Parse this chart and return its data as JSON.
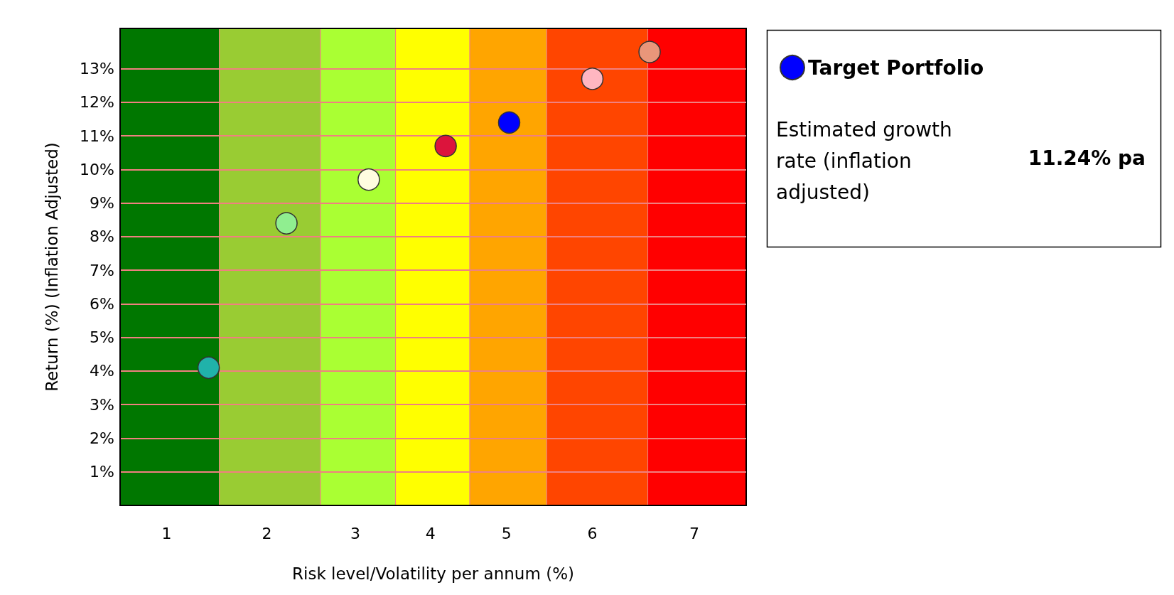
{
  "chart_data": {
    "type": "scatter",
    "xlabel": "Risk level/Volatility per annum (%)",
    "ylabel": "Return (%) (Inflation Adjusted)",
    "xlim": [
      0.5,
      7.5
    ],
    "xticks": [
      {
        "value": 1.02,
        "label": "1"
      },
      {
        "value": 2.14,
        "label": "2"
      },
      {
        "value": 3.13,
        "label": "3"
      },
      {
        "value": 3.97,
        "label": "4"
      },
      {
        "value": 4.82,
        "label": "5"
      },
      {
        "value": 5.78,
        "label": "6"
      },
      {
        "value": 6.92,
        "label": "7"
      }
    ],
    "ylim": [
      0,
      14.2
    ],
    "yticks": [
      {
        "value": 1,
        "label": "1%"
      },
      {
        "value": 2,
        "label": "2%"
      },
      {
        "value": 3,
        "label": "3%"
      },
      {
        "value": 4,
        "label": "4%"
      },
      {
        "value": 5,
        "label": "5%"
      },
      {
        "value": 6,
        "label": "6%"
      },
      {
        "value": 7,
        "label": "7%"
      },
      {
        "value": 8,
        "label": "8%"
      },
      {
        "value": 9,
        "label": "9%"
      },
      {
        "value": 10,
        "label": "10%"
      },
      {
        "value": 11,
        "label": "11%"
      },
      {
        "value": 12,
        "label": "12%"
      },
      {
        "value": 13,
        "label": "13%"
      }
    ],
    "grid": "y",
    "legend": "right",
    "marker": "circle",
    "bands": [
      {
        "axis": "x",
        "from": 0.5,
        "to": 1.61,
        "color": "#007700"
      },
      {
        "axis": "x",
        "from": 1.61,
        "to": 2.74,
        "color": "#99cc33"
      },
      {
        "axis": "x",
        "from": 2.74,
        "to": 3.58,
        "color": "#aaff33"
      },
      {
        "axis": "x",
        "from": 3.58,
        "to": 4.41,
        "color": "#ffff00"
      },
      {
        "axis": "x",
        "from": 4.41,
        "to": 5.27,
        "color": "#ffa500"
      },
      {
        "axis": "x",
        "from": 5.27,
        "to": 6.4,
        "color": "#ff4500"
      },
      {
        "axis": "x",
        "from": 6.4,
        "to": 7.5,
        "color": "#ff0000"
      }
    ],
    "series": [
      {
        "x": [
          1.49,
          2.36,
          3.28,
          4.14,
          5.78,
          6.42
        ],
        "values": [
          4.1,
          8.4,
          9.7,
          10.7,
          12.7,
          13.5
        ],
        "colors": [
          "#20b2aa",
          "#90ee90",
          "#fffde0",
          "#dc143c",
          "#ffb6c1",
          "#e9967a"
        ]
      },
      {
        "name": "Target Portfolio",
        "x": [
          4.85
        ],
        "values": [
          11.4
        ],
        "color": "#0000ff"
      }
    ],
    "annotations": [
      "Estimated growth rate (inflation adjusted)",
      "11.24% pa"
    ]
  }
}
